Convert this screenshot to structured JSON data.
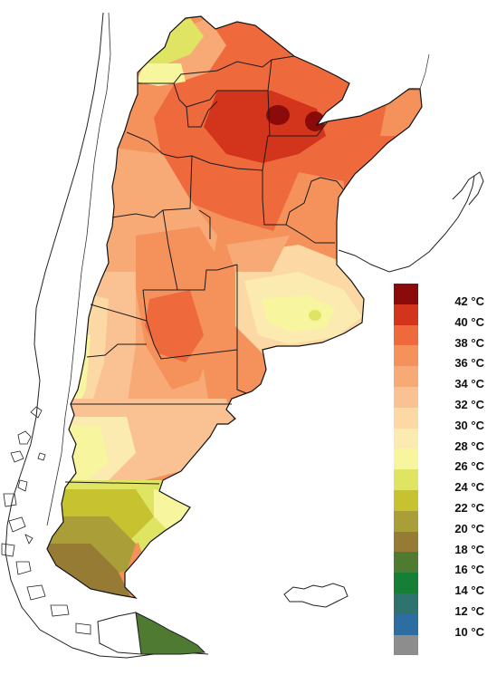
{
  "map": {
    "fill_colors": {
      "border": "#1a1a1a",
      "water": "#ffffff",
      "neighbor_outline": "#222222"
    }
  },
  "legend": {
    "items": [
      {
        "label": "42 °C",
        "color": "#8b0a0a"
      },
      {
        "label": "40 °C",
        "color": "#d2351c"
      },
      {
        "label": "38 °C",
        "color": "#ee6a3c"
      },
      {
        "label": "36 °C",
        "color": "#f5925c"
      },
      {
        "label": "34 °C",
        "color": "#f8aa76"
      },
      {
        "label": "32 °C",
        "color": "#fac193"
      },
      {
        "label": "30 °C",
        "color": "#fbd8a4"
      },
      {
        "label": "28 °C",
        "color": "#fcebb0"
      },
      {
        "label": "26 °C",
        "color": "#f7f59e"
      },
      {
        "label": "24 °C",
        "color": "#dfe463"
      },
      {
        "label": "22 °C",
        "color": "#c7c330"
      },
      {
        "label": "20 °C",
        "color": "#a99e38"
      },
      {
        "label": "18 °C",
        "color": "#967b35"
      },
      {
        "label": "16 °C",
        "color": "#4e7a32"
      },
      {
        "label": "14 °C",
        "color": "#157f36"
      },
      {
        "label": "12 °C",
        "color": "#2f736e"
      },
      {
        "label": "10 °C",
        "color": "#2e6da2"
      },
      {
        "label": "",
        "color": "#8d8d8d"
      }
    ]
  }
}
